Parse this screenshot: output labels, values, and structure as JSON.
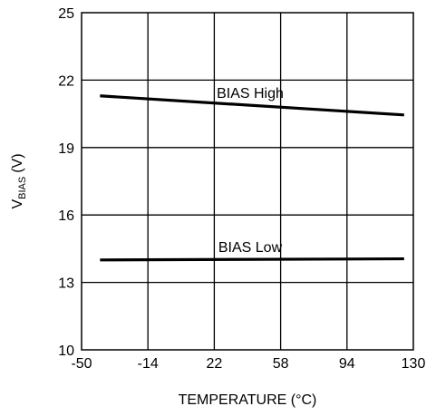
{
  "chart_data": {
    "type": "line",
    "xlabel": "TEMPERATURE (°C)",
    "ylabel": {
      "main": "V",
      "subscript": "BIAS",
      "unit": "(V)"
    },
    "xlim": [
      -50,
      130
    ],
    "ylim": [
      10,
      25
    ],
    "x_ticks": [
      -50,
      -14,
      22,
      58,
      94,
      130
    ],
    "y_ticks": [
      10,
      13,
      16,
      19,
      22,
      25
    ],
    "x_tick_labels": [
      "-50",
      "-14",
      "22",
      "58",
      "94",
      "130"
    ],
    "y_tick_labels": [
      "10",
      "13",
      "16",
      "19",
      "22",
      "25"
    ],
    "grid": true,
    "series": [
      {
        "name": "BIAS High",
        "x": [
          -40,
          125
        ],
        "y": [
          21.3,
          20.45
        ]
      },
      {
        "name": "BIAS Low",
        "x": [
          -40,
          125
        ],
        "y": [
          14.0,
          14.05
        ]
      }
    ]
  }
}
